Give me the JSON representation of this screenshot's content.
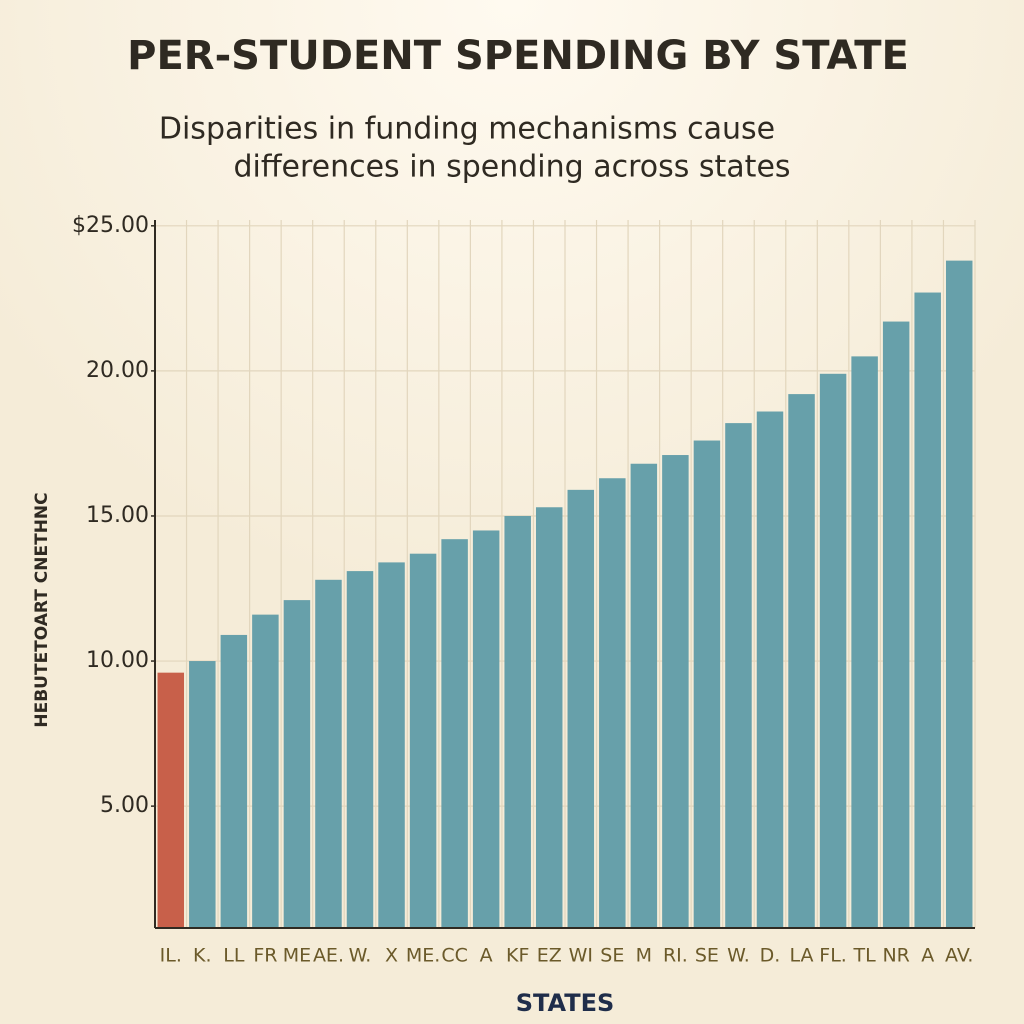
{
  "chart_data": {
    "type": "bar",
    "title": "PER-STUDENT SPENDING BY STATE",
    "subtitle": [
      "Disparities in funding mechanisms cause",
      "differences in spending across states"
    ],
    "y_label": "HEBUTETOART CNETHNC",
    "x_label": "STATES",
    "categories": [
      "IL.",
      "K.",
      "LL",
      "FR",
      "ME",
      "AE.",
      "W.",
      "X",
      "ME.",
      "CC",
      "A",
      "KF",
      "EZ",
      "WI",
      "SE",
      "M",
      "RI.",
      "SE",
      "W.",
      "D.",
      "LA",
      "FL.",
      "TL",
      "NR",
      "A",
      "AV."
    ],
    "values": [
      9.6,
      10.0,
      10.9,
      11.6,
      12.1,
      12.8,
      13.1,
      13.4,
      13.7,
      14.2,
      14.5,
      15.0,
      15.3,
      15.9,
      16.3,
      16.8,
      17.1,
      17.6,
      18.2,
      18.6,
      19.2,
      19.9,
      20.5,
      21.7,
      22.7,
      23.8
    ],
    "colors": [
      "#c8604a",
      "#67a0aa",
      "#67a0aa",
      "#67a0aa",
      "#67a0aa",
      "#67a0aa",
      "#67a0aa",
      "#67a0aa",
      "#67a0aa",
      "#67a0aa",
      "#67a0aa",
      "#67a0aa",
      "#67a0aa",
      "#67a0aa",
      "#67a0aa",
      "#67a0aa",
      "#67a0aa",
      "#67a0aa",
      "#67a0aa",
      "#67a0aa",
      "#67a0aa",
      "#67a0aa",
      "#67a0aa",
      "#67a0aa",
      "#67a0aa",
      "#67a0aa"
    ],
    "ylim": [
      0.8,
      25.2
    ],
    "yticks": [
      {
        "value": 5,
        "label": "5.00"
      },
      {
        "value": 10,
        "label": "10.00"
      },
      {
        "value": 15,
        "label": "15.00"
      },
      {
        "value": 20,
        "label": "20.00"
      },
      {
        "value": 25,
        "label": "$25.00"
      }
    ],
    "grid": true
  }
}
